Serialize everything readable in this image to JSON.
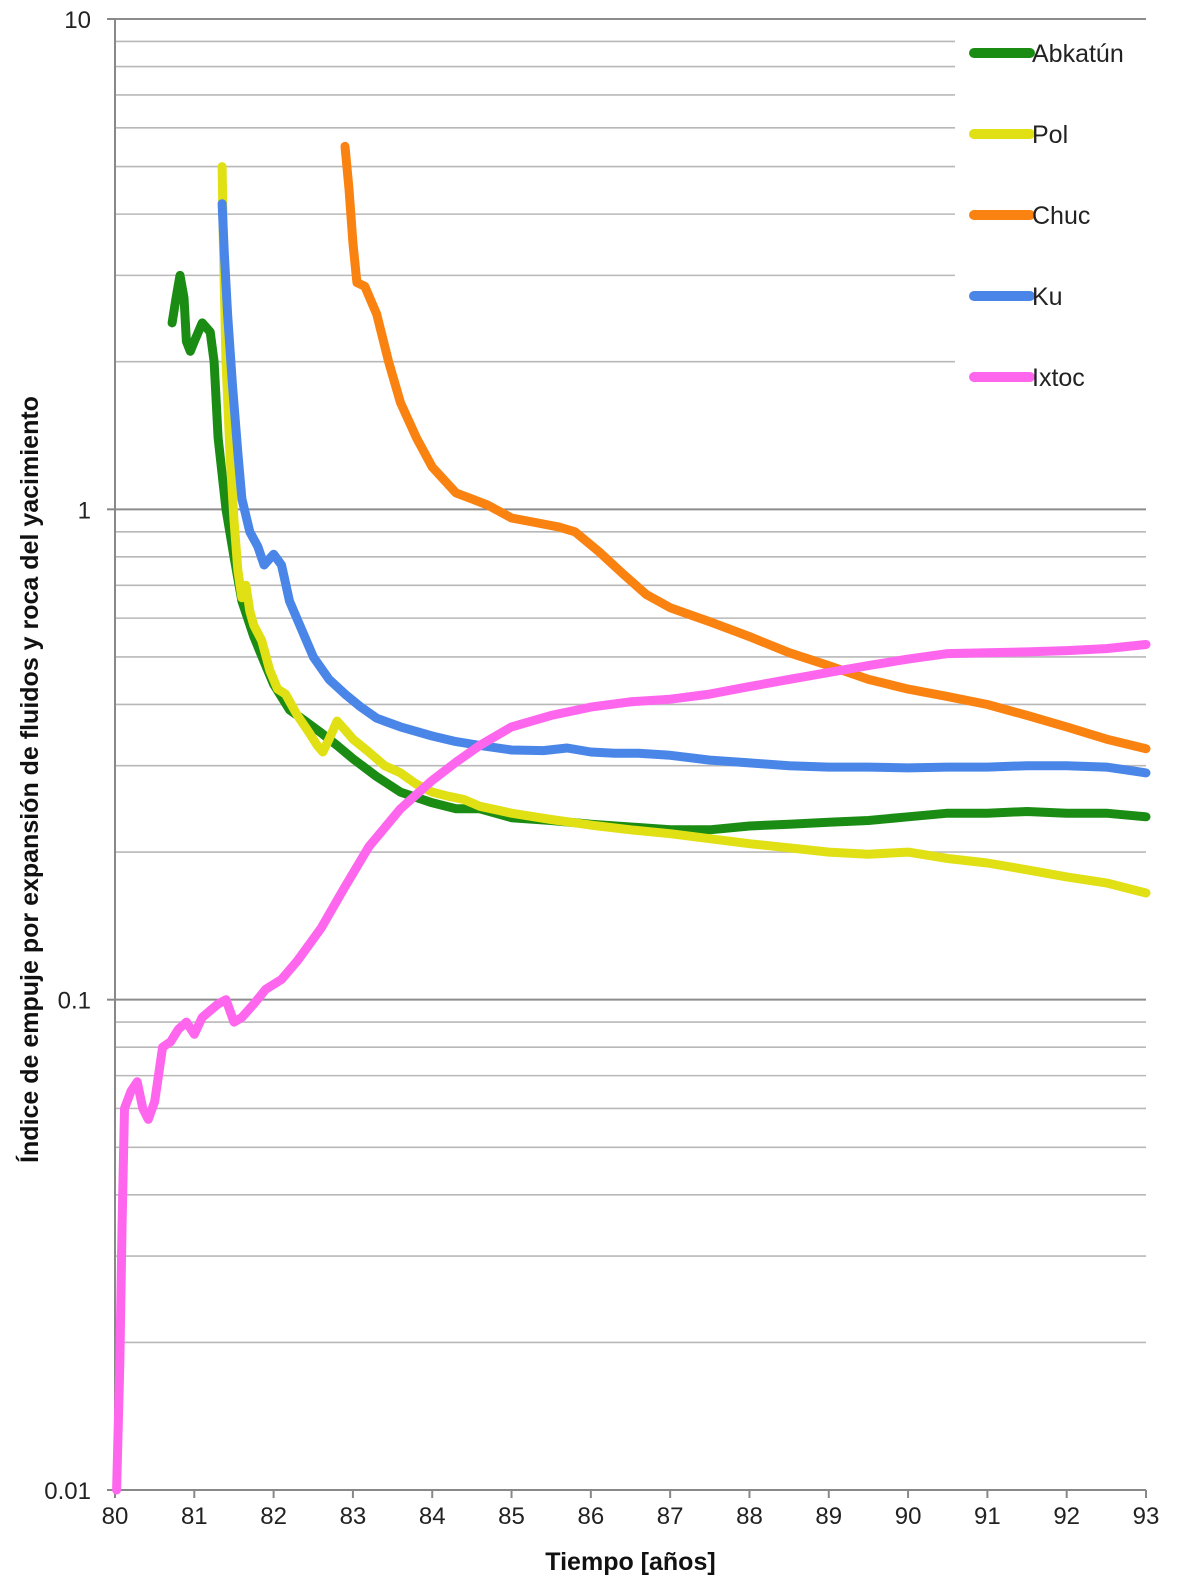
{
  "chart_data": {
    "type": "line",
    "title": "",
    "xlabel": "Tiempo [años]",
    "ylabel": "Índice de empuje por expansión de fluidos y roca del yacimiento",
    "xlim": [
      80,
      93
    ],
    "ylim": [
      0.01,
      10
    ],
    "yscale": "log",
    "grid": "horizontal",
    "legend_position": "top-right",
    "x_ticks": [
      "80",
      "81",
      "82",
      "83",
      "84",
      "85",
      "86",
      "87",
      "88",
      "89",
      "90",
      "91",
      "92",
      "93"
    ],
    "y_ticks": [
      {
        "value": 0.01,
        "label": "0.01"
      },
      {
        "value": 0.1,
        "label": "0.1"
      },
      {
        "value": 1,
        "label": "1"
      },
      {
        "value": 10,
        "label": "10"
      }
    ],
    "series": [
      {
        "name": "Abkatún",
        "color": "#1a8c14",
        "points": [
          [
            80.72,
            2.4
          ],
          [
            80.77,
            2.7
          ],
          [
            80.82,
            3.0
          ],
          [
            80.87,
            2.7
          ],
          [
            80.9,
            2.2
          ],
          [
            80.95,
            2.1
          ],
          [
            81.0,
            2.2
          ],
          [
            81.1,
            2.4
          ],
          [
            81.2,
            2.3
          ],
          [
            81.25,
            2.0
          ],
          [
            81.3,
            1.4
          ],
          [
            81.4,
            1.0
          ],
          [
            81.5,
            0.8
          ],
          [
            81.6,
            0.65
          ],
          [
            81.75,
            0.55
          ],
          [
            81.9,
            0.48
          ],
          [
            82.0,
            0.44
          ],
          [
            82.2,
            0.39
          ],
          [
            82.4,
            0.37
          ],
          [
            82.6,
            0.35
          ],
          [
            82.8,
            0.33
          ],
          [
            83.0,
            0.31
          ],
          [
            83.3,
            0.285
          ],
          [
            83.6,
            0.265
          ],
          [
            84.0,
            0.252
          ],
          [
            84.3,
            0.245
          ],
          [
            84.6,
            0.245
          ],
          [
            85.0,
            0.235
          ],
          [
            85.5,
            0.232
          ],
          [
            86.0,
            0.228
          ],
          [
            86.5,
            0.225
          ],
          [
            87.0,
            0.222
          ],
          [
            87.5,
            0.222
          ],
          [
            88.0,
            0.226
          ],
          [
            88.5,
            0.228
          ],
          [
            89.0,
            0.23
          ],
          [
            89.5,
            0.232
          ],
          [
            90.0,
            0.236
          ],
          [
            90.5,
            0.24
          ],
          [
            91.0,
            0.24
          ],
          [
            91.5,
            0.242
          ],
          [
            92.0,
            0.24
          ],
          [
            92.5,
            0.24
          ],
          [
            93.0,
            0.236
          ]
        ]
      },
      {
        "name": "Pol",
        "color": "#e0e014",
        "points": [
          [
            81.35,
            5.0
          ],
          [
            81.37,
            3.2
          ],
          [
            81.4,
            2.0
          ],
          [
            81.45,
            1.3
          ],
          [
            81.5,
            0.95
          ],
          [
            81.55,
            0.75
          ],
          [
            81.6,
            0.66
          ],
          [
            81.65,
            0.7
          ],
          [
            81.7,
            0.62
          ],
          [
            81.75,
            0.58
          ],
          [
            81.85,
            0.54
          ],
          [
            81.95,
            0.47
          ],
          [
            82.05,
            0.43
          ],
          [
            82.15,
            0.42
          ],
          [
            82.3,
            0.38
          ],
          [
            82.45,
            0.35
          ],
          [
            82.55,
            0.33
          ],
          [
            82.62,
            0.32
          ],
          [
            82.7,
            0.34
          ],
          [
            82.8,
            0.37
          ],
          [
            82.9,
            0.355
          ],
          [
            83.0,
            0.34
          ],
          [
            83.2,
            0.32
          ],
          [
            83.4,
            0.3
          ],
          [
            83.6,
            0.29
          ],
          [
            83.8,
            0.275
          ],
          [
            84.0,
            0.265
          ],
          [
            84.2,
            0.26
          ],
          [
            84.4,
            0.256
          ],
          [
            84.6,
            0.248
          ],
          [
            84.8,
            0.244
          ],
          [
            85.0,
            0.24
          ],
          [
            85.5,
            0.233
          ],
          [
            86.0,
            0.227
          ],
          [
            86.5,
            0.222
          ],
          [
            87.0,
            0.218
          ],
          [
            87.5,
            0.213
          ],
          [
            88.0,
            0.208
          ],
          [
            88.5,
            0.204
          ],
          [
            89.0,
            0.2
          ],
          [
            89.5,
            0.198
          ],
          [
            90.0,
            0.2
          ],
          [
            90.5,
            0.194
          ],
          [
            91.0,
            0.19
          ],
          [
            91.5,
            0.184
          ],
          [
            92.0,
            0.178
          ],
          [
            92.5,
            0.173
          ],
          [
            93.0,
            0.165
          ]
        ]
      },
      {
        "name": "Chuc",
        "color": "#f98211",
        "points": [
          [
            82.9,
            5.5
          ],
          [
            82.95,
            4.5
          ],
          [
            83.0,
            3.5
          ],
          [
            83.05,
            2.9
          ],
          [
            83.15,
            2.85
          ],
          [
            83.3,
            2.5
          ],
          [
            83.45,
            2.0
          ],
          [
            83.6,
            1.65
          ],
          [
            83.8,
            1.4
          ],
          [
            84.0,
            1.22
          ],
          [
            84.3,
            1.08
          ],
          [
            84.5,
            1.05
          ],
          [
            84.7,
            1.02
          ],
          [
            85.0,
            0.96
          ],
          [
            85.3,
            0.94
          ],
          [
            85.6,
            0.92
          ],
          [
            85.8,
            0.9
          ],
          [
            86.1,
            0.82
          ],
          [
            86.4,
            0.74
          ],
          [
            86.7,
            0.67
          ],
          [
            87.0,
            0.63
          ],
          [
            87.5,
            0.59
          ],
          [
            88.0,
            0.55
          ],
          [
            88.5,
            0.51
          ],
          [
            89.0,
            0.48
          ],
          [
            89.5,
            0.45
          ],
          [
            90.0,
            0.43
          ],
          [
            90.5,
            0.415
          ],
          [
            91.0,
            0.4
          ],
          [
            91.5,
            0.38
          ],
          [
            92.0,
            0.36
          ],
          [
            92.5,
            0.34
          ],
          [
            93.0,
            0.325
          ]
        ]
      },
      {
        "name": "Ku",
        "color": "#4a86e8",
        "points": [
          [
            81.35,
            4.2
          ],
          [
            81.38,
            3.3
          ],
          [
            81.42,
            2.5
          ],
          [
            81.48,
            1.8
          ],
          [
            81.55,
            1.3
          ],
          [
            81.6,
            1.05
          ],
          [
            81.7,
            0.9
          ],
          [
            81.8,
            0.84
          ],
          [
            81.88,
            0.77
          ],
          [
            82.0,
            0.81
          ],
          [
            82.1,
            0.77
          ],
          [
            82.2,
            0.65
          ],
          [
            82.35,
            0.57
          ],
          [
            82.5,
            0.5
          ],
          [
            82.7,
            0.45
          ],
          [
            82.9,
            0.42
          ],
          [
            83.1,
            0.395
          ],
          [
            83.3,
            0.375
          ],
          [
            83.6,
            0.36
          ],
          [
            84.0,
            0.345
          ],
          [
            84.3,
            0.336
          ],
          [
            84.6,
            0.33
          ],
          [
            85.0,
            0.323
          ],
          [
            85.4,
            0.322
          ],
          [
            85.7,
            0.326
          ],
          [
            86.0,
            0.32
          ],
          [
            86.3,
            0.318
          ],
          [
            86.6,
            0.318
          ],
          [
            87.0,
            0.315
          ],
          [
            87.5,
            0.308
          ],
          [
            88.0,
            0.304
          ],
          [
            88.5,
            0.3
          ],
          [
            89.0,
            0.298
          ],
          [
            89.5,
            0.298
          ],
          [
            90.0,
            0.297
          ],
          [
            90.5,
            0.298
          ],
          [
            91.0,
            0.298
          ],
          [
            91.5,
            0.3
          ],
          [
            92.0,
            0.3
          ],
          [
            92.5,
            0.298
          ],
          [
            93.0,
            0.29
          ]
        ]
      },
      {
        "name": "Ixtoc",
        "color": "#ff66ee",
        "points": [
          [
            80.02,
            0.01
          ],
          [
            80.06,
            0.018
          ],
          [
            80.09,
            0.035
          ],
          [
            80.12,
            0.06
          ],
          [
            80.2,
            0.065
          ],
          [
            80.28,
            0.068
          ],
          [
            80.35,
            0.06
          ],
          [
            80.42,
            0.057
          ],
          [
            80.5,
            0.062
          ],
          [
            80.6,
            0.08
          ],
          [
            80.7,
            0.082
          ],
          [
            80.8,
            0.087
          ],
          [
            80.9,
            0.09
          ],
          [
            81.0,
            0.085
          ],
          [
            81.1,
            0.092
          ],
          [
            81.2,
            0.095
          ],
          [
            81.3,
            0.098
          ],
          [
            81.4,
            0.1
          ],
          [
            81.5,
            0.09
          ],
          [
            81.6,
            0.092
          ],
          [
            81.75,
            0.098
          ],
          [
            81.9,
            0.105
          ],
          [
            82.1,
            0.11
          ],
          [
            82.3,
            0.12
          ],
          [
            82.6,
            0.14
          ],
          [
            82.9,
            0.17
          ],
          [
            83.2,
            0.205
          ],
          [
            83.6,
            0.245
          ],
          [
            84.0,
            0.28
          ],
          [
            84.3,
            0.305
          ],
          [
            84.6,
            0.33
          ],
          [
            85.0,
            0.36
          ],
          [
            85.5,
            0.38
          ],
          [
            86.0,
            0.395
          ],
          [
            86.5,
            0.405
          ],
          [
            87.0,
            0.41
          ],
          [
            87.5,
            0.42
          ],
          [
            88.0,
            0.435
          ],
          [
            88.5,
            0.45
          ],
          [
            89.0,
            0.465
          ],
          [
            89.5,
            0.48
          ],
          [
            90.0,
            0.495
          ],
          [
            90.5,
            0.508
          ],
          [
            91.0,
            0.51
          ],
          [
            91.5,
            0.512
          ],
          [
            92.0,
            0.515
          ],
          [
            92.5,
            0.52
          ],
          [
            93.0,
            0.53
          ]
        ]
      }
    ]
  }
}
